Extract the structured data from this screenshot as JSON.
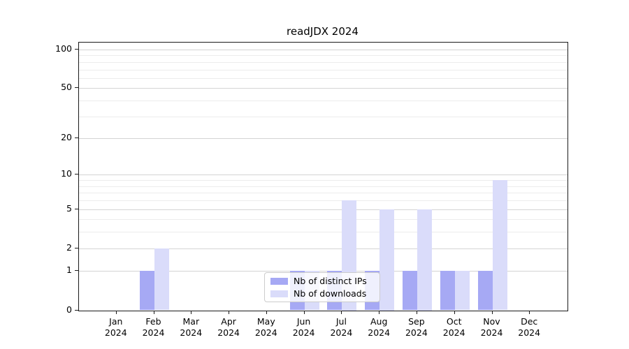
{
  "chart_data": {
    "type": "bar",
    "title": "readJDX 2024",
    "categories": [
      {
        "month": "Jan",
        "year": "2024"
      },
      {
        "month": "Feb",
        "year": "2024"
      },
      {
        "month": "Mar",
        "year": "2024"
      },
      {
        "month": "Apr",
        "year": "2024"
      },
      {
        "month": "May",
        "year": "2024"
      },
      {
        "month": "Jun",
        "year": "2024"
      },
      {
        "month": "Jul",
        "year": "2024"
      },
      {
        "month": "Aug",
        "year": "2024"
      },
      {
        "month": "Sep",
        "year": "2024"
      },
      {
        "month": "Oct",
        "year": "2024"
      },
      {
        "month": "Nov",
        "year": "2024"
      },
      {
        "month": "Dec",
        "year": "2024"
      }
    ],
    "series": [
      {
        "name": "Nb of distinct IPs",
        "color": "#a6a9f4",
        "values": [
          0,
          1,
          0,
          0,
          0,
          1,
          1,
          1,
          1,
          1,
          1,
          0
        ]
      },
      {
        "name": "Nb of downloads",
        "color": "#dadcfa",
        "values": [
          0,
          2,
          0,
          0,
          0,
          1,
          6,
          5,
          5,
          1,
          9,
          0
        ]
      }
    ],
    "yscale": "log1p",
    "y_ticks": [
      0,
      1,
      2,
      5,
      10,
      20,
      50,
      100
    ],
    "y_minor_ticks": [
      3,
      4,
      6,
      7,
      8,
      9,
      30,
      40,
      60,
      70,
      80,
      90
    ],
    "ylim": [
      0,
      113
    ],
    "grid": true,
    "legend_position": "lower center",
    "major_grid_color": "#d4d4d4",
    "minor_grid_color": "#ececec"
  }
}
